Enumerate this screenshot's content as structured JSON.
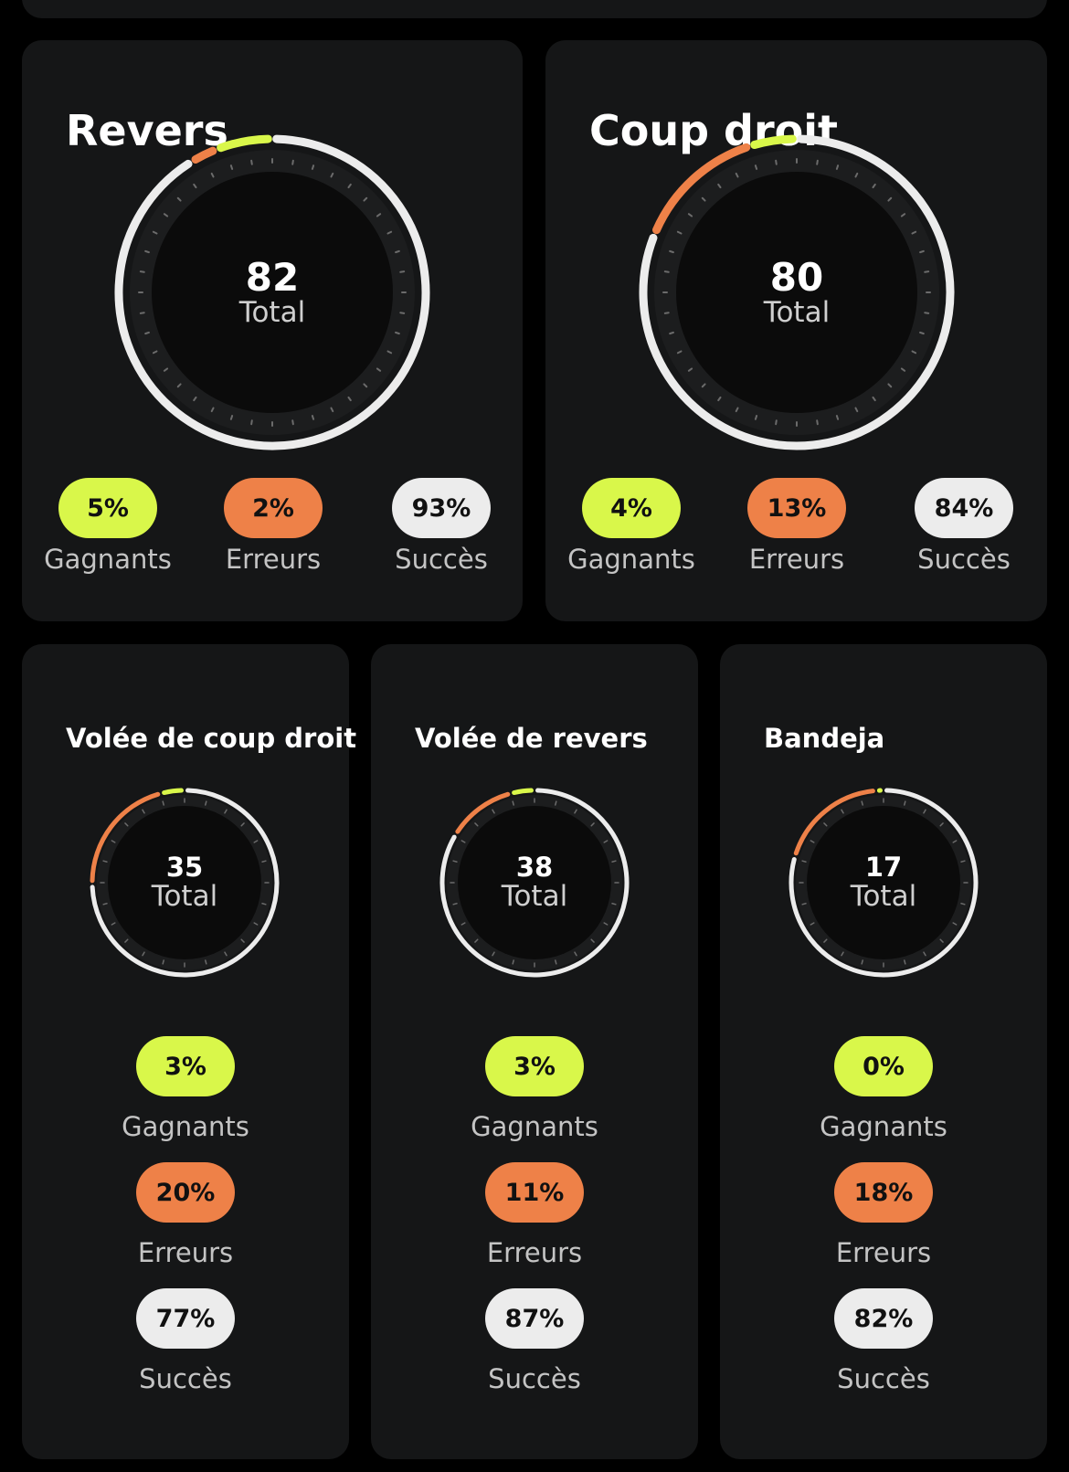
{
  "colors": {
    "background": "#000000",
    "card": "#151617",
    "winners": "#d9f74a",
    "errors": "#ee8148",
    "success": "#ececec"
  },
  "labels": {
    "total": "Total",
    "winners": "Gagnants",
    "errors": "Erreurs",
    "success": "Succès"
  },
  "strokes": [
    {
      "title": "Revers",
      "total": "82",
      "winners": "5%",
      "errors": "2%",
      "success": "93%",
      "winners_pct": 5,
      "errors_pct": 2,
      "success_pct": 93
    },
    {
      "title": "Coup droit",
      "total": "80",
      "winners": "4%",
      "errors": "13%",
      "success": "84%",
      "winners_pct": 4,
      "errors_pct": 13,
      "success_pct": 84
    },
    {
      "title": "Volée de coup droit",
      "total": "35",
      "winners": "3%",
      "errors": "20%",
      "success": "77%",
      "winners_pct": 3,
      "errors_pct": 20,
      "success_pct": 77
    },
    {
      "title": "Volée de revers",
      "total": "38",
      "winners": "3%",
      "errors": "11%",
      "success": "87%",
      "winners_pct": 3,
      "errors_pct": 11,
      "success_pct": 87
    },
    {
      "title": "Bandeja",
      "total": "17",
      "winners": "0%",
      "errors": "18%",
      "success": "82%",
      "winners_pct": 0,
      "errors_pct": 18,
      "success_pct": 82
    }
  ]
}
